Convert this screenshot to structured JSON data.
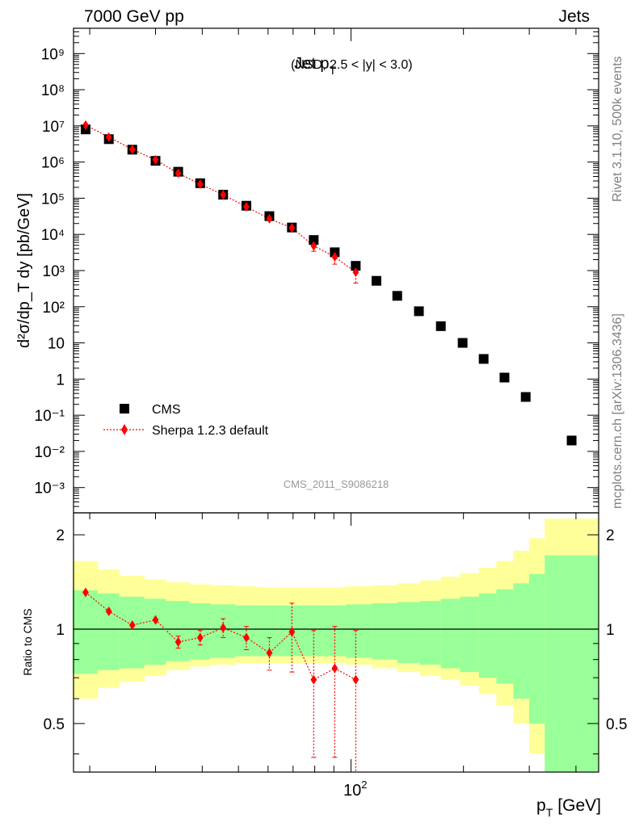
{
  "header": {
    "energy": "7000 GeV pp",
    "process": "Jets"
  },
  "side_text": {
    "rivet": "Rivet 3.1.10,  500k events",
    "source": "mcplots.cern.ch [arXiv:1306.3436]"
  },
  "analysis_id": "CMS_2011_S9086218",
  "colors": {
    "data": "#000000",
    "mc": "#ff0000",
    "band_inner": "#99ff99",
    "band_outer": "#ffff99"
  },
  "chart_data": [
    {
      "type": "scatter",
      "title_main": "Jet p",
      "title_sub": "T",
      "title_extra": "(NSD, 2.5 < |y| < 3.0)",
      "ylabel": "d²σ/dp_T dy [pb/GeV]",
      "yscale": "log",
      "ylim": [
        0.0002,
        5000000000.0
      ],
      "xscale": "log",
      "xlim": [
        18.1,
        460
      ],
      "ytick_labels": [
        "10⁻³",
        "10⁻²",
        "10⁻¹",
        "1",
        "10",
        "10²",
        "10³",
        "10⁴",
        "10⁵",
        "10⁶",
        "10⁷",
        "10⁸",
        "10⁹"
      ],
      "legend_position": "bottom-left",
      "series": [
        {
          "name": "CMS",
          "marker": "square",
          "x": [
            19.5,
            22.5,
            26.0,
            30.0,
            34.5,
            39.5,
            45.5,
            52.5,
            60.5,
            69.5,
            79.5,
            90.5,
            103.0,
            117.0,
            133.0,
            152.0,
            174.0,
            199.0,
            226.5,
            257.5,
            293.5,
            389.5
          ],
          "y": [
            8000000,
            4300000,
            2200000,
            1080000,
            540000,
            260000,
            125000,
            62000,
            32000,
            15500,
            7000,
            3200,
            1350,
            520,
            200,
            75,
            29,
            10,
            3.6,
            1.1,
            0.32,
            0.02
          ]
        },
        {
          "name": "Sherpa 1.2.3 default",
          "marker": "diamond",
          "x": [
            19.5,
            22.5,
            26.0,
            30.0,
            34.5,
            39.5,
            45.5,
            52.5,
            60.5,
            69.5,
            79.5,
            90.5,
            103.0
          ],
          "y": [
            10500000,
            4900000,
            2250000,
            1150000,
            490000,
            245000,
            125000,
            58000,
            27000,
            15200,
            4800,
            2400,
            900
          ],
          "yerr_low": [
            0,
            0,
            0,
            0,
            0,
            0,
            0,
            0,
            3000,
            2000,
            1400,
            900,
            450
          ],
          "yerr_high": [
            0,
            0,
            0,
            0,
            0,
            0,
            0,
            0,
            3000,
            2000,
            1000,
            800,
            250
          ]
        }
      ]
    },
    {
      "type": "scatter",
      "ylabel": "Ratio to CMS",
      "yscale": "log",
      "ylim": [
        0.35,
        2.35
      ],
      "ytick_labels": [
        "0.5",
        "1",
        "2"
      ],
      "xscale": "log",
      "xlim": [
        18.1,
        460
      ],
      "xlabel_main": "p",
      "xlabel_sub": "T",
      "xlabel_unit": "[GeV]",
      "xtick_label_base": "10",
      "xtick_label_exp": "2",
      "reference_line": 1,
      "bin_edges": [
        18,
        21,
        24,
        28,
        32,
        37,
        42,
        49,
        56,
        64,
        74,
        84,
        97,
        114,
        133,
        153,
        174,
        196,
        220,
        245,
        272,
        300,
        330,
        362,
        395,
        430,
        460
      ],
      "band_inner_low": [
        0.72,
        0.74,
        0.75,
        0.77,
        0.79,
        0.8,
        0.81,
        0.82,
        0.82,
        0.82,
        0.82,
        0.82,
        0.81,
        0.8,
        0.78,
        0.77,
        0.75,
        0.73,
        0.7,
        0.67,
        0.6,
        0.5,
        0.35,
        0.35,
        0.35,
        0.35
      ],
      "band_inner_high": [
        1.33,
        1.3,
        1.27,
        1.25,
        1.23,
        1.21,
        1.2,
        1.19,
        1.19,
        1.19,
        1.19,
        1.19,
        1.2,
        1.21,
        1.22,
        1.23,
        1.25,
        1.27,
        1.3,
        1.34,
        1.4,
        1.5,
        1.72,
        1.72,
        1.72,
        1.72
      ],
      "band_outer_low": [
        0.6,
        0.65,
        0.68,
        0.71,
        0.74,
        0.76,
        0.77,
        0.78,
        0.78,
        0.78,
        0.78,
        0.78,
        0.77,
        0.75,
        0.73,
        0.71,
        0.69,
        0.66,
        0.62,
        0.57,
        0.5,
        0.4,
        0.35,
        0.35,
        0.35,
        0.35
      ],
      "band_outer_high": [
        1.65,
        1.55,
        1.48,
        1.44,
        1.41,
        1.39,
        1.38,
        1.37,
        1.36,
        1.36,
        1.36,
        1.36,
        1.37,
        1.38,
        1.4,
        1.43,
        1.47,
        1.51,
        1.57,
        1.65,
        1.78,
        1.95,
        2.25,
        2.25,
        2.25,
        2.25
      ],
      "series": [
        {
          "name": "Sherpa 1.2.3 default",
          "marker": "diamond",
          "x": [
            19.5,
            22.5,
            26.0,
            30.0,
            34.5,
            39.5,
            45.5,
            52.5,
            60.5,
            69.5,
            79.5,
            90.5,
            103.0
          ],
          "y": [
            1.31,
            1.14,
            1.03,
            1.07,
            0.91,
            0.94,
            1.01,
            0.94,
            0.84,
            0.98,
            0.69,
            0.75,
            0.69
          ],
          "yerr_low": [
            0.03,
            0.03,
            0.03,
            0.03,
            0.04,
            0.05,
            0.07,
            0.08,
            0.1,
            0.25,
            0.3,
            0.36,
            0.35
          ],
          "yerr_high": [
            0.03,
            0.03,
            0.03,
            0.03,
            0.04,
            0.05,
            0.07,
            0.08,
            0.1,
            0.23,
            0.3,
            0.27,
            0.3
          ]
        }
      ]
    }
  ]
}
